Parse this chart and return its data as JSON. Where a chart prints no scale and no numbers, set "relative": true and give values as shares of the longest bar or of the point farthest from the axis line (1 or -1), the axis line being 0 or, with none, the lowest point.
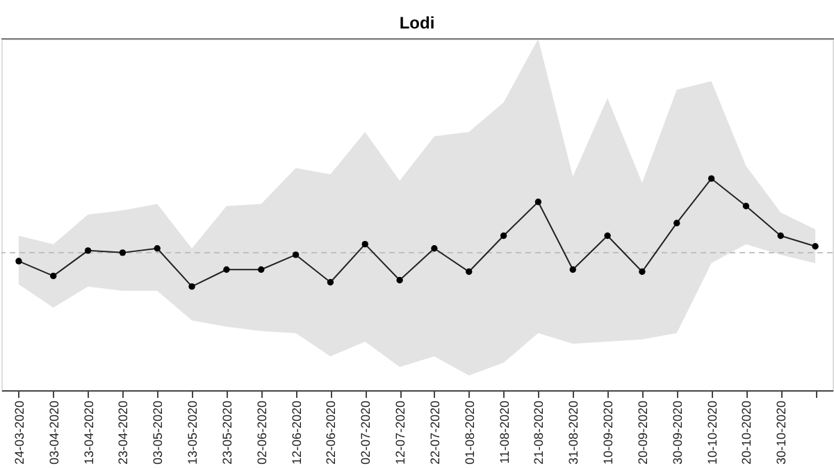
{
  "chart_data": {
    "type": "line",
    "title": "Lodi",
    "relative": true,
    "categories": [
      "24-03-2020",
      "03-04-2020",
      "13-04-2020",
      "23-04-2020",
      "03-05-2020",
      "13-05-2020",
      "23-05-2020",
      "02-06-2020",
      "12-06-2020",
      "22-06-2020",
      "02-07-2020",
      "12-07-2020",
      "22-07-2020",
      "01-08-2020",
      "11-08-2020",
      "21-08-2020",
      "31-08-2020",
      "10-09-2020",
      "20-09-2020",
      "30-09-2020",
      "10-10-2020",
      "20-10-2020",
      "30-10-2020",
      null
    ],
    "series": [
      {
        "color": "#222222",
        "marker": "circle",
        "line_style": "solid",
        "values": [
          0.61,
          0.54,
          0.66,
          0.65,
          0.67,
          0.49,
          0.57,
          0.57,
          0.64,
          0.51,
          0.69,
          0.52,
          0.67,
          0.56,
          0.73,
          0.89,
          0.57,
          0.73,
          0.56,
          0.79,
          1.0,
          0.87,
          0.73,
          0.68
        ],
        "upper": [
          0.73,
          0.69,
          0.83,
          0.85,
          0.88,
          0.67,
          0.87,
          0.88,
          1.05,
          1.02,
          1.22,
          0.99,
          1.2,
          1.22,
          1.36,
          1.66,
          1.01,
          1.38,
          0.98,
          1.42,
          1.46,
          1.06,
          0.84,
          0.76
        ],
        "lower": [
          0.5,
          0.39,
          0.49,
          0.47,
          0.47,
          0.33,
          0.3,
          0.28,
          0.27,
          0.16,
          0.23,
          0.11,
          0.16,
          0.07,
          0.13,
          0.27,
          0.22,
          0.23,
          0.24,
          0.27,
          0.6,
          0.69,
          0.64,
          0.6
        ]
      }
    ],
    "ref_lines": [
      {
        "axis": "y",
        "value": 0.65,
        "color": "#bbbbbb",
        "line_style": "dashed"
      }
    ],
    "grid": false
  }
}
